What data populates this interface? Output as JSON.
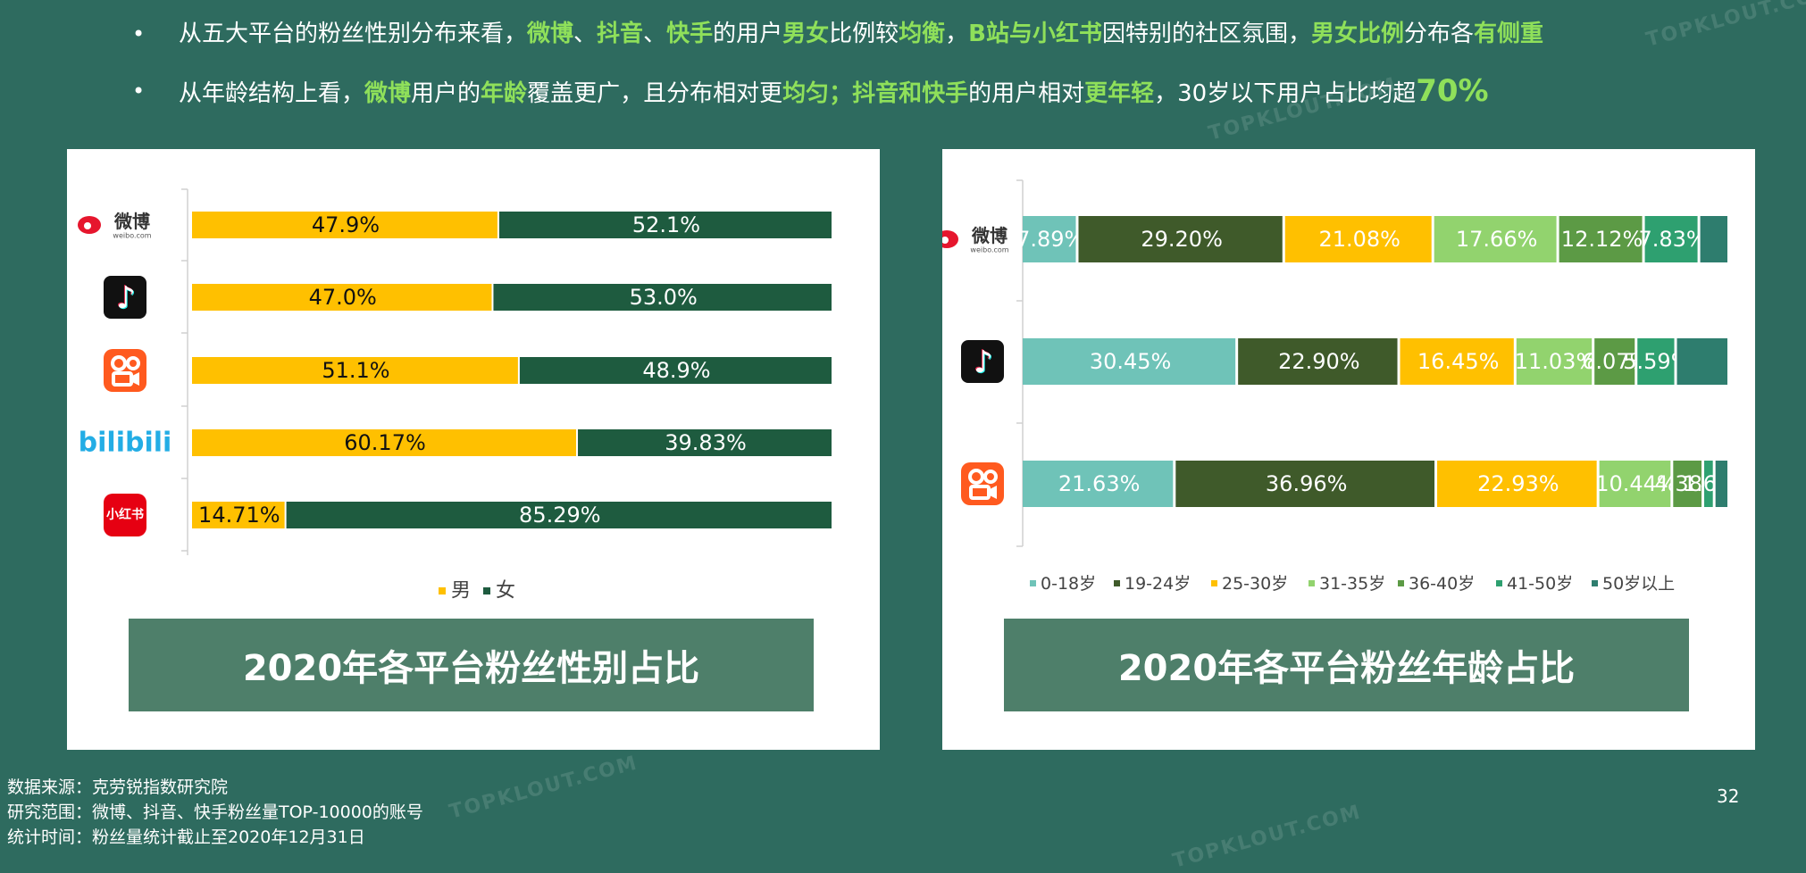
{
  "bullets": [
    {
      "segments": [
        {
          "t": "从五大平台的粉丝性别分布来看，",
          "h": false
        },
        {
          "t": "微博",
          "h": true
        },
        {
          "t": "、",
          "h": false
        },
        {
          "t": "抖音",
          "h": true
        },
        {
          "t": "、",
          "h": false
        },
        {
          "t": "快手",
          "h": true
        },
        {
          "t": "的用户",
          "h": false
        },
        {
          "t": "男女",
          "h": true
        },
        {
          "t": "比例较",
          "h": false
        },
        {
          "t": "均衡",
          "h": true
        },
        {
          "t": "，",
          "h": false
        },
        {
          "t": "B站与小红书",
          "h": true
        },
        {
          "t": "因特别的社区氛围，",
          "h": false
        },
        {
          "t": "男女比例",
          "h": true
        },
        {
          "t": "分布各",
          "h": false
        },
        {
          "t": "有侧重",
          "h": true
        }
      ]
    },
    {
      "segments": [
        {
          "t": "从年龄结构上看，",
          "h": false
        },
        {
          "t": "微博",
          "h": true
        },
        {
          "t": "用户的",
          "h": false
        },
        {
          "t": "年龄",
          "h": true
        },
        {
          "t": "覆盖更广，且分布相对更",
          "h": false
        },
        {
          "t": "均匀；抖音和快手",
          "h": true
        },
        {
          "t": "的用户相对",
          "h": false
        },
        {
          "t": "更年轻",
          "h": true
        },
        {
          "t": "，30岁以下用户占比均超",
          "h": false
        },
        {
          "t": "70%",
          "h": true,
          "big": true
        }
      ]
    }
  ],
  "left_title": "2020年各平台粉丝性别占比",
  "right_title": "2020年各平台粉丝年龄占比",
  "footer": {
    "line1": "数据来源：克劳锐指数研究院",
    "line2": "研究范围：微博、抖音、快手粉丝量TOP-10000的账号",
    "line3": "统计时间：粉丝量统计截止至2020年12月31日"
  },
  "page_number": "32",
  "watermark": "TOPKLOUT.COM",
  "logos": {
    "weibo": {
      "text": "微博",
      "sub": "weibo.com",
      "color": "#e6162d"
    },
    "bilibili": {
      "text": "bilibili",
      "color": "#23ade5"
    },
    "xiaohongshu": {
      "text": "小红书",
      "color": "#e60012"
    },
    "douyin_icon": "douyin-icon",
    "kuaishou_icon": "kuaishou-icon"
  },
  "chart_data": [
    {
      "type": "bar",
      "stacked": true,
      "orientation": "horizontal",
      "categories": [
        "weibo",
        "douyin",
        "kuaishou",
        "bilibili",
        "xiaohongshu"
      ],
      "series": [
        {
          "name": "男",
          "color": "#ffc000",
          "values": [
            47.9,
            47.0,
            51.1,
            60.17,
            14.71
          ],
          "labels": [
            "47.9%",
            "47.0%",
            "51.1%",
            "60.17%",
            "14.71%"
          ]
        },
        {
          "name": "女",
          "color": "#1e5b3f",
          "values": [
            52.1,
            53.0,
            48.9,
            39.83,
            85.29
          ],
          "labels": [
            "52.1%",
            "53.0%",
            "48.9%",
            "39.83%",
            "85.29%"
          ]
        }
      ],
      "legend": "bottom"
    },
    {
      "type": "bar",
      "stacked": true,
      "orientation": "horizontal",
      "categories": [
        "weibo",
        "douyin",
        "kuaishou"
      ],
      "series": [
        {
          "name": "0-18岁",
          "color": "#6fc3b8",
          "values": [
            7.89,
            30.45,
            21.63
          ],
          "labels": [
            "7.89%",
            "30.45%",
            "21.63%"
          ]
        },
        {
          "name": "19-24岁",
          "color": "#3f5a2a",
          "values": [
            29.2,
            22.9,
            36.96
          ],
          "labels": [
            "29.20%",
            "22.90%",
            "36.96%"
          ]
        },
        {
          "name": "25-30岁",
          "color": "#ffc000",
          "values": [
            21.08,
            16.45,
            22.93
          ],
          "labels": [
            "21.08%",
            "16.45%",
            "22.93%"
          ]
        },
        {
          "name": "31-35岁",
          "color": "#92d36e",
          "values": [
            17.66,
            11.03,
            10.44
          ],
          "labels": [
            "17.66%",
            "11.03%",
            "10.44%"
          ]
        },
        {
          "name": "36-40岁",
          "color": "#5c9a45",
          "values": [
            12.12,
            6.07,
            4.38
          ],
          "labels": [
            "12.12%",
            "6.07%",
            "4.38%"
          ]
        },
        {
          "name": "41-50岁",
          "color": "#2ea070",
          "values": [
            7.83,
            5.59,
            1.6
          ],
          "labels": [
            "7.83%",
            "5.59%",
            "1.6%"
          ]
        },
        {
          "name": "50岁以上",
          "color": "#2e7d6e",
          "values": [
            4.22,
            7.51,
            2.06
          ],
          "labels": [
            "",
            "",
            ""
          ]
        }
      ],
      "legend": "bottom"
    }
  ]
}
